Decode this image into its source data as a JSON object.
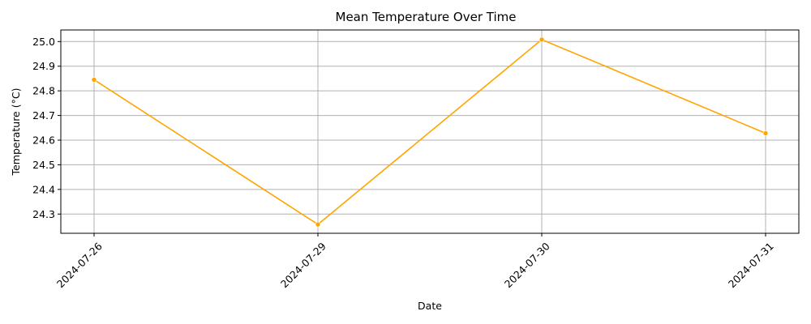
{
  "chart_data": {
    "type": "line",
    "title": "Mean Temperature Over Time",
    "xlabel": "Date",
    "ylabel": "Temperature (°C)",
    "categories": [
      "2024-07-26",
      "2024-07-29",
      "2024-07-30",
      "2024-07-31"
    ],
    "series": [
      {
        "values": [
          24.845,
          24.258,
          25.008,
          24.628
        ],
        "color": "#ffa500"
      }
    ],
    "ylim": [
      24.222,
      25.047
    ],
    "yticks": [
      "24.3",
      "24.4",
      "24.5",
      "24.6",
      "24.7",
      "24.8",
      "24.9",
      "25.0"
    ],
    "grid": true,
    "x_tick_rotation_deg": 45
  }
}
